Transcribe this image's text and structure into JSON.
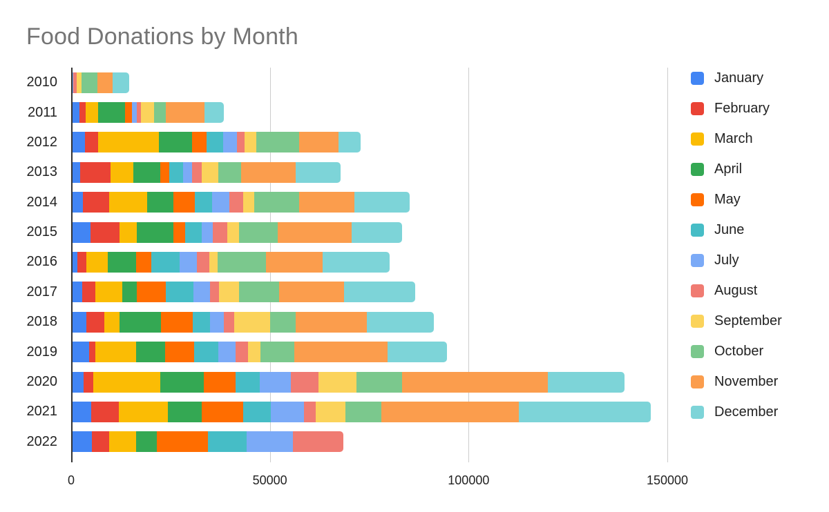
{
  "title": "Food Donations by Month",
  "chart_data": {
    "type": "bar",
    "stacked": true,
    "orientation": "horizontal",
    "title": "Food Donations by Month",
    "xlabel": "",
    "ylabel": "",
    "grid": true,
    "legend_position": "right",
    "x_ticks": [
      0,
      50000,
      100000,
      150000
    ],
    "x_tick_labels": [
      "0",
      "50000",
      "100000",
      "150000"
    ],
    "xlim": [
      0,
      154000
    ],
    "categories": [
      "2010",
      "2011",
      "2012",
      "2013",
      "2014",
      "2015",
      "2016",
      "2017",
      "2018",
      "2019",
      "2020",
      "2021",
      "2022"
    ],
    "series": [
      {
        "name": "January",
        "color": "#4285F4",
        "values": [
          0,
          2100,
          3400,
          2300,
          3000,
          4900,
          1600,
          2800,
          3900,
          4500,
          3200,
          5100,
          5300
        ]
      },
      {
        "name": "February",
        "color": "#EA4335",
        "values": [
          0,
          1500,
          3400,
          7600,
          6500,
          7200,
          2300,
          3200,
          4400,
          1500,
          2300,
          6900,
          4200
        ]
      },
      {
        "name": "March",
        "color": "#FBBC04",
        "values": [
          0,
          3200,
          15300,
          5800,
          9700,
          4400,
          5300,
          6900,
          3900,
          10400,
          17000,
          12400,
          6900
        ]
      },
      {
        "name": "April",
        "color": "#34A853",
        "values": [
          0,
          6800,
          8400,
          6800,
          6600,
          9300,
          7200,
          3700,
          10400,
          7200,
          10900,
          8400,
          5100
        ]
      },
      {
        "name": "May",
        "color": "#FF6D00",
        "values": [
          0,
          1700,
          3600,
          2200,
          5400,
          2800,
          3700,
          7200,
          8000,
          7400,
          8000,
          10500,
          13000
        ]
      },
      {
        "name": "June",
        "color": "#46BDC6",
        "values": [
          0,
          0,
          4200,
          3500,
          4200,
          4200,
          7200,
          6900,
          4400,
          6000,
          6100,
          6900,
          9700
        ]
      },
      {
        "name": "July",
        "color": "#7BAAF7",
        "values": [
          500,
          1300,
          3500,
          2300,
          4400,
          2800,
          4400,
          4200,
          3400,
          4300,
          7700,
          8400,
          11600
        ]
      },
      {
        "name": "August",
        "color": "#F07B72",
        "values": [
          900,
          1000,
          1900,
          2300,
          3500,
          3700,
          3000,
          2300,
          2700,
          3200,
          7100,
          3000,
          12700
        ]
      },
      {
        "name": "September",
        "color": "#FBD35B",
        "values": [
          1200,
          3200,
          2900,
          4200,
          2800,
          3000,
          2100,
          5100,
          8900,
          3200,
          9500,
          7400,
          0
        ]
      },
      {
        "name": "October",
        "color": "#7BC88D",
        "values": [
          4000,
          3100,
          10800,
          5800,
          11300,
          9700,
          12300,
          10000,
          6500,
          8400,
          11400,
          9000,
          0
        ]
      },
      {
        "name": "November",
        "color": "#FB9D4D",
        "values": [
          3800,
          9600,
          9900,
          13700,
          13900,
          18500,
          14100,
          16400,
          17900,
          23500,
          36800,
          34700,
          0
        ]
      },
      {
        "name": "December",
        "color": "#7DD4D8",
        "values": [
          4200,
          5000,
          5500,
          11300,
          13900,
          12700,
          16900,
          17800,
          16900,
          14900,
          19300,
          33200,
          0
        ]
      }
    ]
  }
}
